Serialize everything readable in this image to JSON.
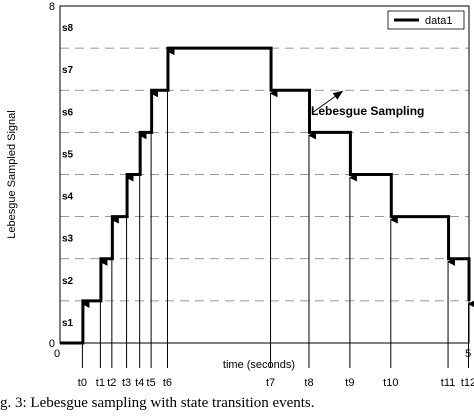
{
  "caption": "g. 3: Lebesgue sampling with state transition events.",
  "chart_data": {
    "type": "line",
    "title": "",
    "xlabel": "time (seconds)",
    "ylabel": "Lebesgue Sampled Signal",
    "xlim": [
      0,
      5
    ],
    "ylim": [
      0,
      8
    ],
    "x_tick_labels": [
      "0",
      "5"
    ],
    "y_tick_labels": [
      "0",
      "8"
    ],
    "level_labels": [
      "s1",
      "s2",
      "s3",
      "s4",
      "s5",
      "s6",
      "s7",
      "s8"
    ],
    "level_values": [
      0.5,
      1.5,
      2.5,
      3.5,
      4.5,
      5.5,
      6.5,
      7.5
    ],
    "grid": "dashed horizontal lines at each level",
    "legend": {
      "placement": "top-right",
      "entries": [
        "data1"
      ]
    },
    "series": [
      {
        "name": "data1",
        "step": "post",
        "x": [
          0,
          0.28,
          0.5,
          0.64,
          0.82,
          0.98,
          1.12,
          1.32,
          2.58,
          3.05,
          3.55,
          4.05,
          4.75,
          5.5,
          5.0
        ],
        "y": [
          0,
          1,
          2,
          3,
          4,
          5,
          6,
          7,
          6,
          5,
          4,
          3,
          2,
          1,
          1
        ]
      }
    ],
    "events": [
      {
        "label": "t0",
        "x": 0.28
      },
      {
        "label": "t1",
        "x": 0.5
      },
      {
        "label": "t2",
        "x": 0.64
      },
      {
        "label": "t3",
        "x": 0.82
      },
      {
        "label": "t4",
        "x": 0.98
      },
      {
        "label": "t5",
        "x": 1.12
      },
      {
        "label": "t6",
        "x": 1.32
      },
      {
        "label": "t7",
        "x": 2.58
      },
      {
        "label": "t8",
        "x": 3.05
      },
      {
        "label": "t9",
        "x": 3.55
      },
      {
        "label": "t10",
        "x": 4.05
      },
      {
        "label": "t11",
        "x": 4.75
      },
      {
        "label": "t12",
        "x": 5.5
      }
    ],
    "annotations": [
      {
        "text": "Lebesgue Sampling",
        "points_to": {
          "x": 3.55,
          "y": 5
        }
      }
    ]
  }
}
